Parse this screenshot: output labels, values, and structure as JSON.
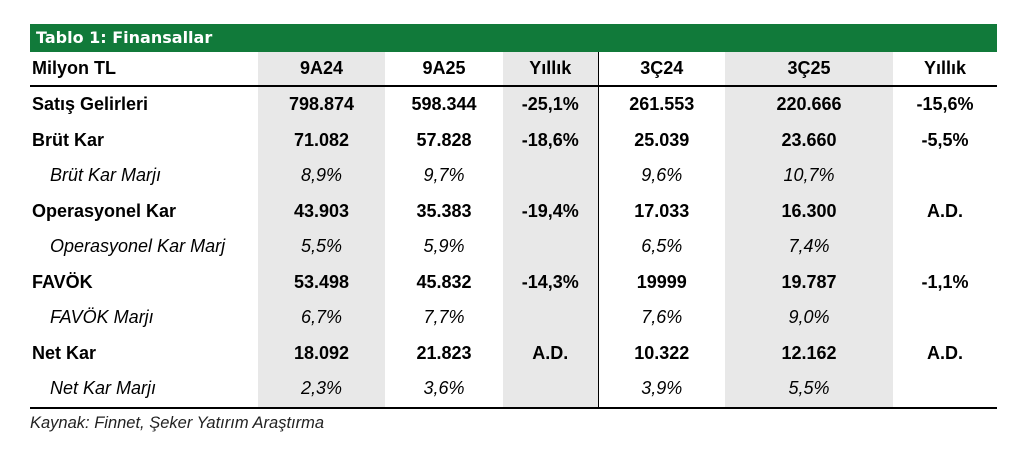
{
  "title": "Tablo 1: Finansallar",
  "headers": [
    "Milyon TL",
    "9A24",
    "9A25",
    "Yıllık",
    "3Ç24",
    "3Ç25",
    "Yıllık"
  ],
  "rows": [
    {
      "label": "Satış Gelirleri",
      "sub": false,
      "cells": [
        "798.874",
        "598.344",
        "-25,1%",
        "261.553",
        "220.666",
        "-15,6%"
      ]
    },
    {
      "label": "Brüt Kar",
      "sub": false,
      "cells": [
        "71.082",
        "57.828",
        "-18,6%",
        "25.039",
        "23.660",
        "-5,5%"
      ]
    },
    {
      "label": "Brüt Kar Marjı",
      "sub": true,
      "cells": [
        "8,9%",
        "9,7%",
        "",
        "9,6%",
        "10,7%",
        ""
      ]
    },
    {
      "label": "Operasyonel Kar",
      "sub": false,
      "cells": [
        "43.903",
        "35.383",
        "-19,4%",
        "17.033",
        "16.300",
        "A.D."
      ]
    },
    {
      "label": "Operasyonel Kar Marj",
      "sub": true,
      "cells": [
        "5,5%",
        "5,9%",
        "",
        "6,5%",
        "7,4%",
        ""
      ]
    },
    {
      "label": "FAVÖK",
      "sub": false,
      "cells": [
        "53.498",
        "45.832",
        "-14,3%",
        "19999",
        "19.787",
        "-1,1%"
      ]
    },
    {
      "label": "FAVÖK Marjı",
      "sub": true,
      "cells": [
        "6,7%",
        "7,7%",
        "",
        "7,6%",
        "9,0%",
        ""
      ]
    },
    {
      "label": "Net Kar",
      "sub": false,
      "cells": [
        "18.092",
        "21.823",
        "A.D.",
        "10.322",
        "12.162",
        "A.D."
      ]
    },
    {
      "label": "Net Kar Marjı",
      "sub": true,
      "cells": [
        "2,3%",
        "3,6%",
        "",
        "3,9%",
        "5,5%",
        ""
      ]
    }
  ],
  "source": "Kaynak: Finnet, Şeker Yatırım Araştırma",
  "colors": {
    "title_bg": "#117a3a",
    "shade": "#e8e8e8"
  }
}
